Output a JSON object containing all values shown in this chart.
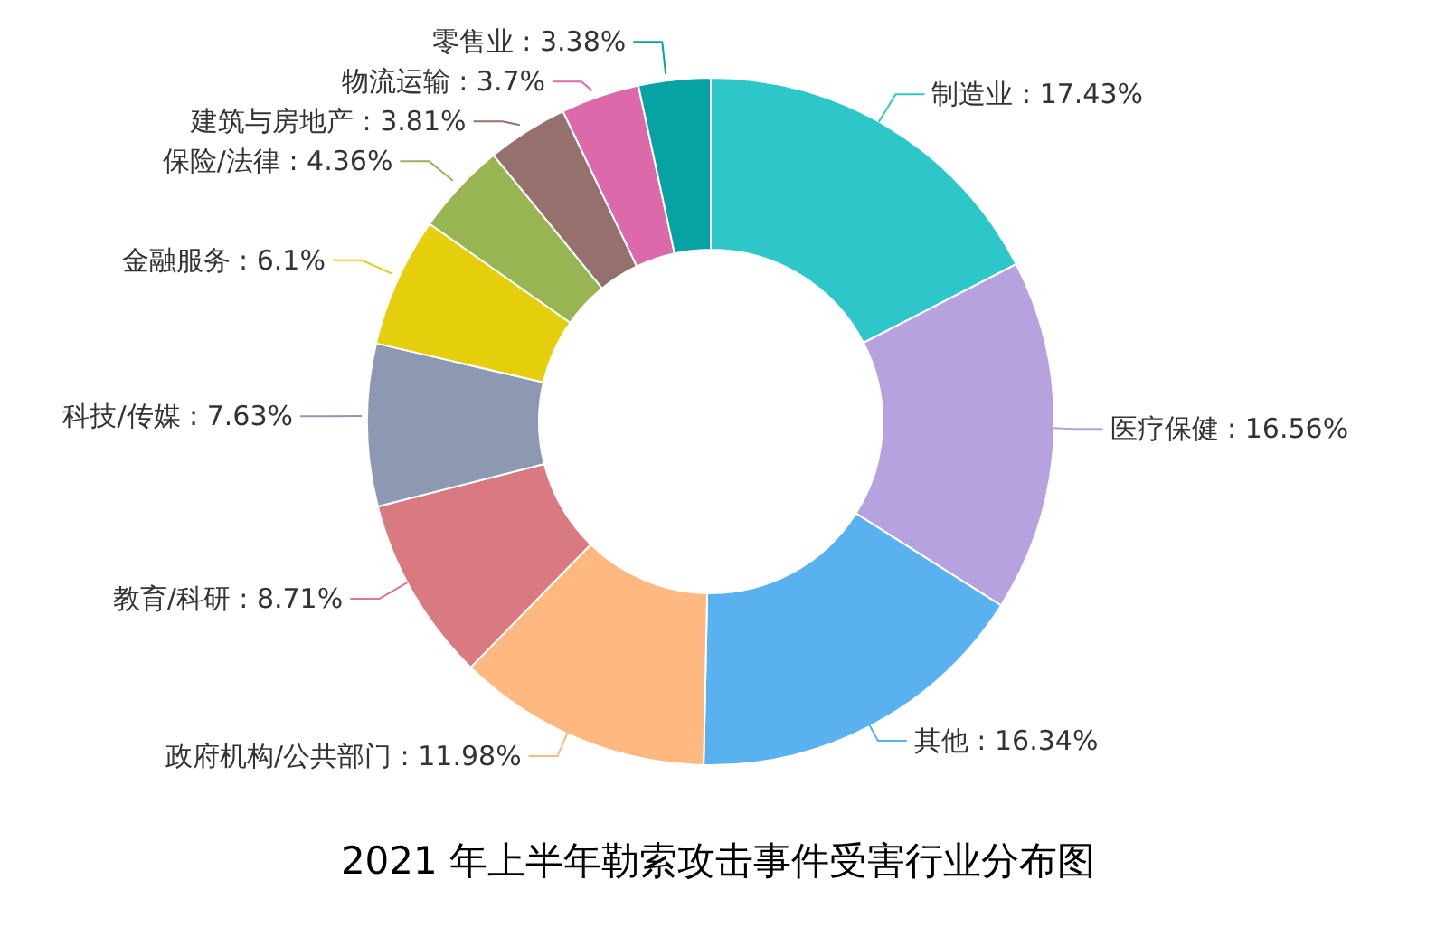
{
  "chart_data": {
    "type": "donut",
    "title": "2021 年上半年勒索攻击事件受害行业分布图",
    "categories": [
      "制造业",
      "医疗保健",
      "其他",
      "政府机构/公共部门",
      "教育/科研",
      "科技/传媒",
      "金融服务",
      "保险/法律",
      "建筑与房地产",
      "物流运输",
      "零售业"
    ],
    "values": [
      17.43,
      16.56,
      16.34,
      11.98,
      8.71,
      7.63,
      6.1,
      4.36,
      3.81,
      3.7,
      3.38
    ],
    "value_labels": [
      "17.43%",
      "16.56%",
      "16.34%",
      "11.98%",
      "8.71%",
      "7.63%",
      "6.1%",
      "4.36%",
      "3.81%",
      "3.7%",
      "3.38%"
    ],
    "colors": [
      "#2ec7c9",
      "#b6a2de",
      "#5ab1ef",
      "#ffb980",
      "#d87a80",
      "#8d98b3",
      "#e5cf0d",
      "#97b552",
      "#95706d",
      "#dc69aa",
      "#07a2a4"
    ]
  }
}
